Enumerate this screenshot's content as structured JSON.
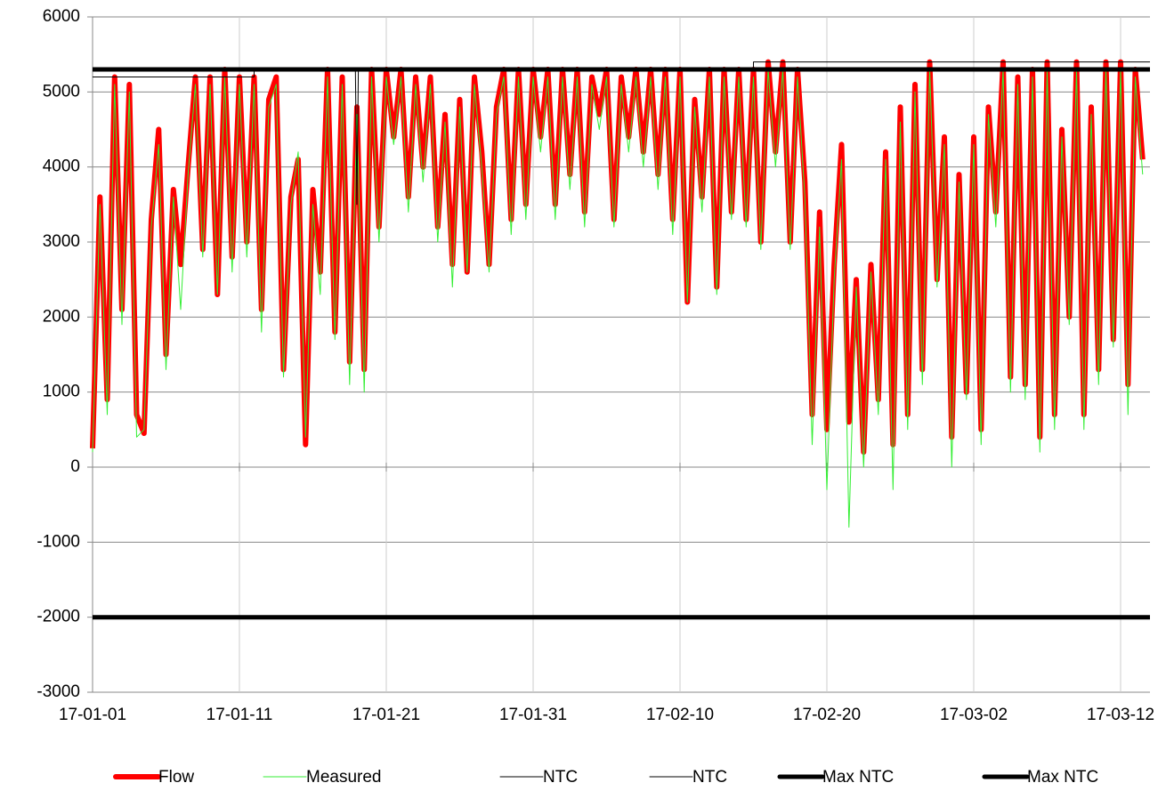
{
  "chart_data": {
    "type": "line",
    "x": [
      0,
      0.5,
      1,
      1.5,
      2,
      2.5,
      3,
      3.5,
      4,
      4.5,
      5,
      5.5,
      6,
      6.5,
      7,
      7.5,
      8,
      8.5,
      9,
      9.5,
      10,
      10.5,
      11,
      11.5,
      12,
      12.5,
      13,
      13.5,
      14,
      14.5,
      15,
      15.5,
      16,
      16.5,
      17,
      17.5,
      18,
      18.5,
      19,
      19.5,
      20,
      20.5,
      21,
      21.5,
      22,
      22.5,
      23,
      23.5,
      24,
      24.5,
      25,
      25.5,
      26,
      26.5,
      27,
      27.5,
      28,
      28.5,
      29,
      29.5,
      30,
      30.5,
      31,
      31.5,
      32,
      32.5,
      33,
      33.5,
      34,
      34.5,
      35,
      35.5,
      36,
      36.5,
      37,
      37.5,
      38,
      38.5,
      39,
      39.5,
      40,
      40.5,
      41,
      41.5,
      42,
      42.5,
      43,
      43.5,
      44,
      44.5,
      45,
      45.5,
      46,
      46.5,
      47,
      47.5,
      48,
      48.5,
      49,
      49.5,
      50,
      50.5,
      51,
      51.5,
      52,
      52.5,
      53,
      53.5,
      54,
      54.5,
      55,
      55.5,
      56,
      56.5,
      57,
      57.5,
      58,
      58.5,
      59,
      59.5,
      60,
      60.5,
      61,
      61.5,
      62,
      62.5,
      63,
      63.5,
      64,
      64.5,
      65,
      65.5,
      66,
      66.5,
      67,
      67.5,
      68,
      68.5,
      69,
      69.5,
      70,
      70.5,
      71,
      71.5
    ],
    "series": [
      {
        "name": "Flow",
        "color": "#ff0000",
        "width": 6,
        "values": [
          250,
          3600,
          900,
          5200,
          2100,
          5100,
          700,
          450,
          3300,
          4500,
          1500,
          3700,
          2700,
          4000,
          5200,
          2900,
          5200,
          2300,
          5300,
          2800,
          5200,
          3000,
          5200,
          2100,
          4900,
          5200,
          1300,
          3600,
          4100,
          300,
          3700,
          2600,
          5300,
          1800,
          5200,
          1400,
          4800,
          1300,
          5300,
          3200,
          5300,
          4400,
          5300,
          3600,
          5200,
          4000,
          5200,
          3200,
          4700,
          2700,
          4900,
          2600,
          5200,
          4200,
          2700,
          4800,
          5300,
          3300,
          5300,
          3500,
          5300,
          4400,
          5300,
          3500,
          5300,
          3900,
          5300,
          3400,
          5200,
          4700,
          5300,
          3300,
          5200,
          4400,
          5300,
          4200,
          5300,
          3900,
          5300,
          3300,
          5300,
          2200,
          4900,
          3600,
          5300,
          2400,
          5300,
          3400,
          5300,
          3300,
          5300,
          3000,
          5400,
          4200,
          5400,
          3000,
          5300,
          3800,
          700,
          3400,
          500,
          2700,
          4300,
          600,
          2500,
          200,
          2700,
          900,
          4200,
          300,
          4800,
          700,
          5100,
          1300,
          5400,
          2500,
          4400,
          400,
          3900,
          1000,
          4400,
          500,
          4800,
          3400,
          5400,
          1200,
          5200,
          1100,
          5300,
          400,
          5400,
          700,
          4500,
          2000,
          5400,
          700,
          4800,
          1300,
          5400,
          1700,
          5400,
          1100,
          5300,
          4100
        ]
      },
      {
        "name": "Measured",
        "color": "#33ee33",
        "width": 1,
        "values": [
          200,
          3500,
          700,
          5100,
          1900,
          5000,
          400,
          500,
          3200,
          4300,
          1300,
          3600,
          2100,
          3900,
          5100,
          2800,
          5100,
          2300,
          5200,
          2600,
          5100,
          2800,
          5100,
          1800,
          4800,
          5100,
          1200,
          3500,
          4200,
          400,
          3500,
          2300,
          5200,
          1700,
          5100,
          1100,
          4700,
          1000,
          5200,
          3000,
          5200,
          4300,
          5200,
          3400,
          5100,
          3800,
          5100,
          3000,
          4600,
          2400,
          4800,
          2600,
          5100,
          4000,
          2600,
          4700,
          5200,
          3100,
          5200,
          3300,
          5200,
          4200,
          5200,
          3300,
          5200,
          3700,
          5200,
          3200,
          5100,
          4500,
          5200,
          3200,
          5100,
          4200,
          5200,
          4000,
          5200,
          3700,
          5200,
          3100,
          5200,
          2200,
          4800,
          3400,
          5200,
          2300,
          5200,
          3300,
          5200,
          3200,
          5200,
          2900,
          5300,
          4000,
          5300,
          2900,
          5200,
          3600,
          300,
          3200,
          -300,
          2500,
          4100,
          -800,
          2400,
          0,
          2600,
          700,
          4100,
          -300,
          4600,
          500,
          5000,
          1100,
          5300,
          2400,
          4300,
          0,
          3800,
          900,
          4300,
          300,
          4700,
          3200,
          5300,
          1000,
          5100,
          900,
          5200,
          200,
          5300,
          500,
          4400,
          1900,
          5300,
          500,
          4700,
          1100,
          5300,
          1600,
          5300,
          700,
          5200,
          3900
        ]
      },
      {
        "name": "NTC",
        "color": "#000000",
        "width": 1,
        "x": [
          0,
          11,
          11,
          72
        ],
        "values": [
          5200,
          5200,
          5300,
          5300
        ]
      },
      {
        "name": "NTC",
        "color": "#000000",
        "width": 1,
        "x": [
          0,
          17.9,
          18,
          18.1,
          45,
          45,
          72
        ],
        "values": [
          5300,
          5300,
          3500,
          5300,
          5300,
          5400,
          5400
        ]
      },
      {
        "name": "Max NTC",
        "color": "#000000",
        "width": 5,
        "x": [
          0,
          72
        ],
        "values": [
          5300,
          5300
        ]
      },
      {
        "name": "Max NTC",
        "color": "#000000",
        "width": 5,
        "x": [
          0,
          72
        ],
        "values": [
          -2000,
          -2000
        ]
      }
    ],
    "xlim": [
      0,
      72
    ],
    "xticks": [
      {
        "value": 0,
        "label": "17-01-01"
      },
      {
        "value": 10,
        "label": "17-01-11"
      },
      {
        "value": 20,
        "label": "17-01-21"
      },
      {
        "value": 30,
        "label": "17-01-31"
      },
      {
        "value": 40,
        "label": "17-02-10"
      },
      {
        "value": 50,
        "label": "17-02-20"
      },
      {
        "value": 60,
        "label": "17-03-02"
      },
      {
        "value": 70,
        "label": "17-03-12"
      }
    ],
    "ylim": [
      -3000,
      6000
    ],
    "yticks": [
      -3000,
      -2000,
      -1000,
      0,
      1000,
      2000,
      3000,
      4000,
      5000,
      6000
    ],
    "grid": true,
    "legend": "bottom"
  }
}
